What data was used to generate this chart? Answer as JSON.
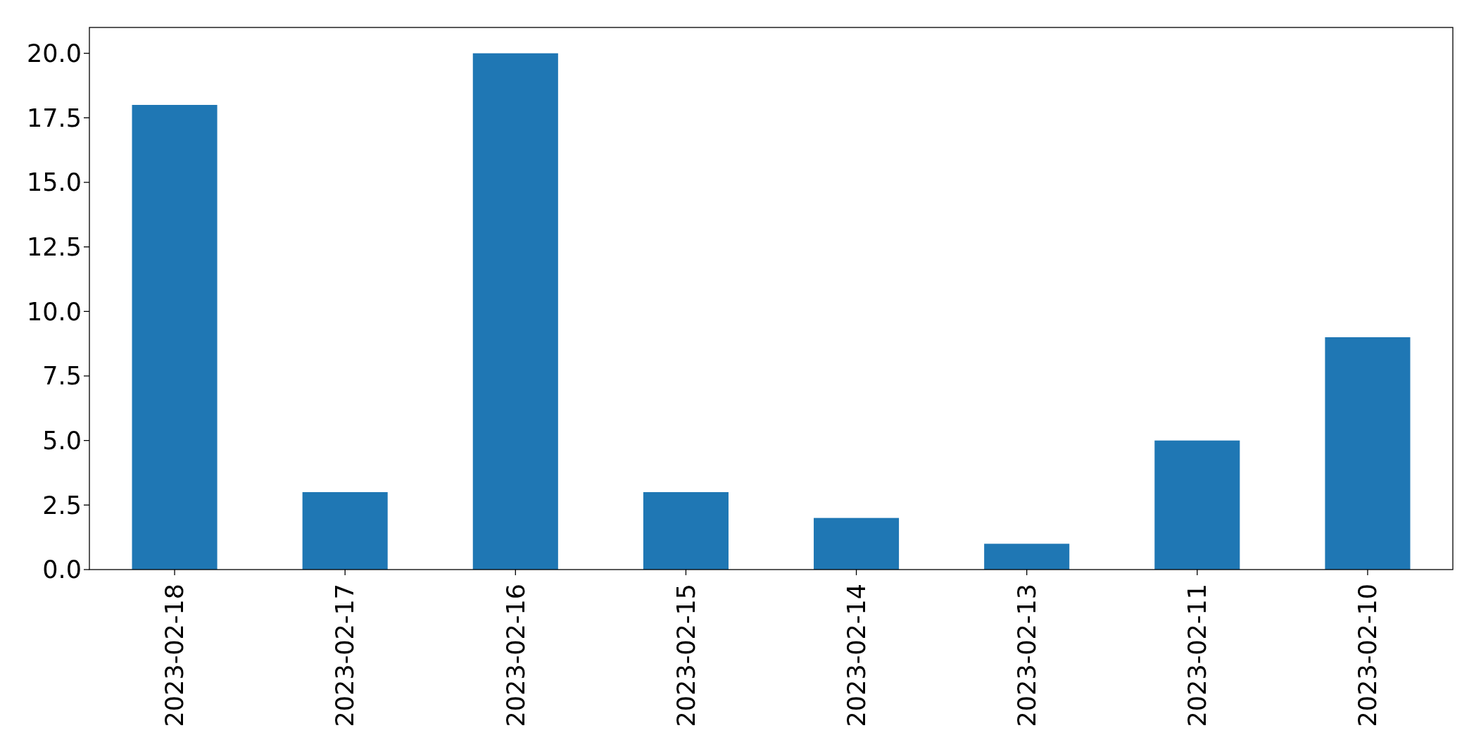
{
  "chart_data": {
    "type": "bar",
    "categories": [
      "2023-02-18",
      "2023-02-17",
      "2023-02-16",
      "2023-02-15",
      "2023-02-14",
      "2023-02-13",
      "2023-02-11",
      "2023-02-10"
    ],
    "values": [
      18,
      3,
      20,
      3,
      2,
      1,
      5,
      9
    ],
    "color": "#1f77b4",
    "ylim": [
      0,
      21
    ],
    "yticks": [
      {
        "value": 0,
        "label": "0.0"
      },
      {
        "value": 2.5,
        "label": "2.5"
      },
      {
        "value": 5,
        "label": "5.0"
      },
      {
        "value": 7.5,
        "label": "7.5"
      },
      {
        "value": 10,
        "label": "10.0"
      },
      {
        "value": 12.5,
        "label": "12.5"
      },
      {
        "value": 15,
        "label": "15.0"
      },
      {
        "value": 17.5,
        "label": "17.5"
      },
      {
        "value": 20,
        "label": "20.0"
      }
    ],
    "grid": false
  }
}
